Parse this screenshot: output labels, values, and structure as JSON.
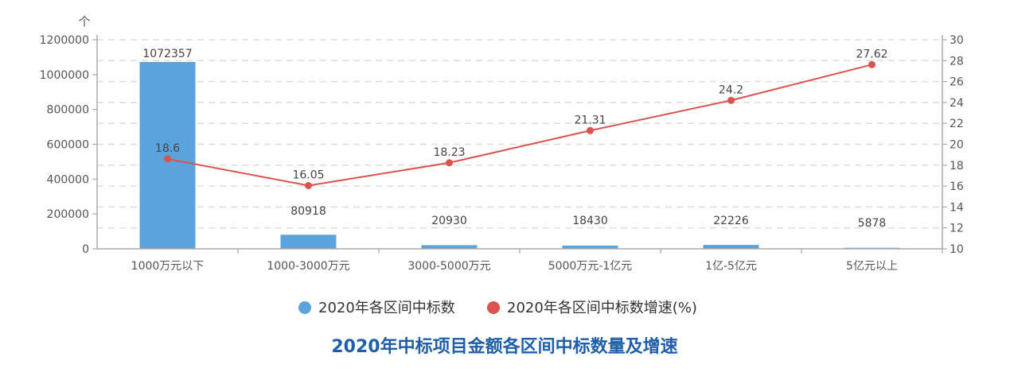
{
  "chart_data": {
    "type": "bar",
    "title": "2020年中标项目金额各区间中标数量及增速",
    "left_axis_unit": "个",
    "categories": [
      "1000万元以下",
      "1000-3000万元",
      "3000-5000万元",
      "5000万元-1亿元",
      "1亿-5亿元",
      "5亿元以上"
    ],
    "series": [
      {
        "name": "2020年各区间中标数",
        "type": "bar",
        "axis": "left",
        "color": "#5ba3dc",
        "values": [
          1072357,
          80918,
          20930,
          18430,
          22226,
          5878
        ],
        "labels": [
          "1072357",
          "80918",
          "20930",
          "18430",
          "22226",
          "5878"
        ]
      },
      {
        "name": "2020年各区间中标数增速(%)",
        "type": "line",
        "axis": "right",
        "color": "#d9534f",
        "values": [
          18.6,
          16.05,
          18.23,
          21.31,
          24.2,
          27.62
        ],
        "labels": [
          "18.6",
          "16.05",
          "18.23",
          "21.31",
          "24.2",
          "27.62"
        ]
      }
    ],
    "y_left": {
      "min": 0,
      "max": 1200000,
      "ticks": [
        "0",
        "200000",
        "400000",
        "600000",
        "800000",
        "1000000",
        "1200000"
      ]
    },
    "y_right": {
      "min": 10,
      "max": 30,
      "ticks": [
        "10",
        "12",
        "14",
        "16",
        "18",
        "20",
        "22",
        "24",
        "26",
        "28",
        "30"
      ]
    },
    "grid": true,
    "legend_position": "bottom"
  }
}
